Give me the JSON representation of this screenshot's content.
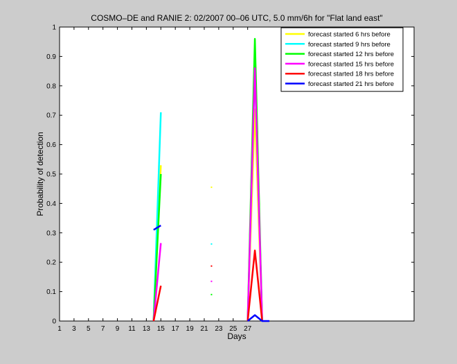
{
  "chart_data": {
    "type": "line",
    "title": "COSMO–DE and RANIE 2: 02/2007 00–06 UTC, 5.0 mm/6h for \"Flat land east\"",
    "xlabel": "Days",
    "ylabel": "Probability of detection",
    "xlim": [
      1,
      50
    ],
    "ylim": [
      0,
      1
    ],
    "xticks": [
      1,
      3,
      5,
      7,
      9,
      11,
      13,
      15,
      17,
      19,
      21,
      23,
      25,
      27
    ],
    "xtick_labels": [
      "1",
      "3",
      "5",
      "7",
      "9",
      "11",
      "13",
      "15",
      "17",
      "19",
      "21",
      "23",
      "25",
      "27"
    ],
    "yticks": [
      0,
      0.1,
      0.2,
      0.3,
      0.4,
      0.5,
      0.6,
      0.7,
      0.8,
      0.9,
      1
    ],
    "ytick_labels": [
      "0",
      "0.1",
      "0.2",
      "0.3",
      "0.4",
      "0.5",
      "0.6",
      "0.7",
      "0.8",
      "0.9",
      "1"
    ],
    "grid": false,
    "legend_position": "top-right",
    "series": [
      {
        "name": "forecast started 6 hrs before",
        "color": "#ffff00",
        "segments": [
          [
            [
              14,
              0
            ],
            [
              15,
              0.53
            ]
          ],
          [
            [
              27,
              0
            ],
            [
              28,
              0.72
            ],
            [
              29,
              0
            ]
          ]
        ],
        "points": [
          [
            22,
            0.455
          ]
        ]
      },
      {
        "name": "forecast started 9 hrs before",
        "color": "#00ffff",
        "segments": [
          [
            [
              14,
              0
            ],
            [
              15,
              0.71
            ]
          ],
          [
            [
              27,
              0
            ],
            [
              28,
              0.86
            ],
            [
              29,
              0
            ]
          ]
        ],
        "points": [
          [
            22,
            0.262
          ]
        ]
      },
      {
        "name": "forecast started 12 hrs before",
        "color": "#00ff00",
        "segments": [
          [
            [
              14,
              0
            ],
            [
              15,
              0.5
            ]
          ],
          [
            [
              27,
              0
            ],
            [
              28,
              0.96
            ],
            [
              29,
              0
            ]
          ]
        ],
        "points": [
          [
            22,
            0.09
          ]
        ]
      },
      {
        "name": "forecast started 15 hrs before",
        "color": "#ff00ff",
        "segments": [
          [
            [
              14,
              0
            ],
            [
              15,
              0.265
            ]
          ],
          [
            [
              27,
              0
            ],
            [
              28,
              0.86
            ],
            [
              29,
              0
            ]
          ]
        ],
        "points": [
          [
            22,
            0.135
          ]
        ]
      },
      {
        "name": "forecast started 18 hrs before",
        "color": "#ff0000",
        "segments": [
          [
            [
              14,
              0
            ],
            [
              15,
              0.12
            ]
          ],
          [
            [
              27,
              0
            ],
            [
              28,
              0.24
            ],
            [
              29,
              0
            ]
          ]
        ],
        "points": [
          [
            22,
            0.187
          ]
        ]
      },
      {
        "name": "forecast started 21 hrs before",
        "color": "#0000ff",
        "segments": [
          [
            [
              14,
              0.31
            ],
            [
              15,
              0.325
            ]
          ],
          [
            [
              27,
              0
            ],
            [
              28,
              0.02
            ],
            [
              29,
              0
            ],
            [
              30,
              0
            ]
          ]
        ],
        "points": []
      }
    ]
  }
}
